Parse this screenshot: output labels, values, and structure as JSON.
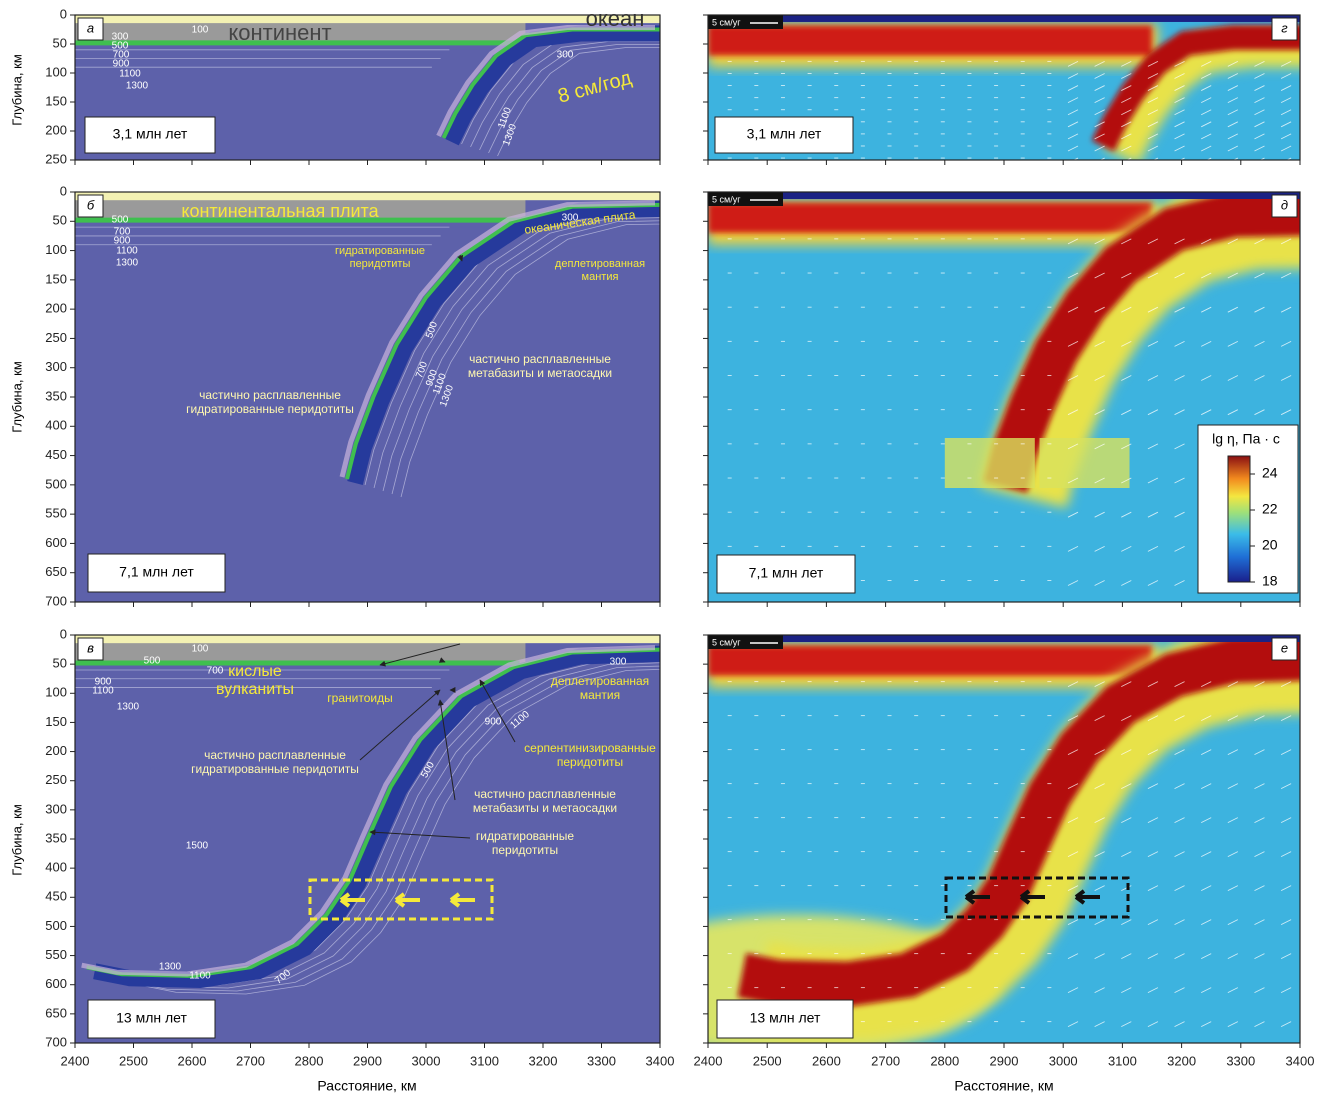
{
  "x_axis": {
    "label": "Расстояние, км",
    "lim": [
      2400,
      3400
    ],
    "ticks": [
      2400,
      2500,
      2600,
      2700,
      2800,
      2900,
      3000,
      3100,
      3200,
      3300,
      3400
    ]
  },
  "y_axis_label": "Глубина, км",
  "panels": [
    {
      "letter": "а",
      "time": "3,1 млн лет",
      "ylim": [
        0,
        250
      ],
      "yticks": [
        0,
        50,
        100,
        150,
        200,
        250
      ],
      "annotations": [
        [
          "континент"
        ],
        [
          "океан"
        ],
        [
          "8 см/год"
        ],
        [
          "100"
        ],
        [
          "300"
        ],
        [
          "500"
        ],
        [
          "700"
        ],
        [
          "900"
        ],
        [
          "1100"
        ],
        [
          "1300"
        ],
        [
          "300"
        ],
        [
          "1100"
        ],
        [
          "1300"
        ]
      ]
    },
    {
      "letter": "б",
      "time": "7,1 млн лет",
      "ylim": [
        0,
        700
      ],
      "yticks": [
        0,
        50,
        100,
        150,
        200,
        250,
        300,
        350,
        400,
        450,
        500,
        550,
        600,
        650,
        700
      ],
      "annotations": [
        [
          "континентальная плита"
        ],
        [
          "океаническая плита"
        ],
        [
          "гидратированные",
          "перидотиты"
        ],
        [
          "деплетированная",
          "мантия"
        ],
        [
          "частично расплавленные",
          "метабазиты и метаосадки"
        ],
        [
          "частично расплавленные",
          "гидратированные перидотиты"
        ],
        [
          "500"
        ],
        [
          "700"
        ],
        [
          "900"
        ],
        [
          "1100"
        ],
        [
          "1300"
        ],
        [
          "500"
        ],
        [
          "700"
        ],
        [
          "900"
        ],
        [
          "1100"
        ],
        [
          "1300"
        ],
        [
          "300"
        ]
      ]
    },
    {
      "letter": "в",
      "time": "13 млн лет",
      "ylim": [
        0,
        700
      ],
      "yticks": [
        0,
        50,
        100,
        150,
        200,
        250,
        300,
        350,
        400,
        450,
        500,
        550,
        600,
        650,
        700
      ],
      "annotations": [
        [
          "кислые",
          "вулканиты"
        ],
        [
          "гранитоиды"
        ],
        [
          "деплетированная",
          "мантия"
        ],
        [
          "серпентинизированные",
          "перидотиты"
        ],
        [
          "частично расплавленные",
          "гидратированные перидотиты"
        ],
        [
          "частично расплавленные",
          "метабазиты и метаосадки"
        ],
        [
          "гидратированные",
          "перидотиты"
        ],
        [
          "100"
        ],
        [
          "500"
        ],
        [
          "700"
        ],
        [
          "900"
        ],
        [
          "1100"
        ],
        [
          "1300"
        ],
        [
          "300"
        ],
        [
          "900"
        ],
        [
          "1100"
        ],
        [
          "500"
        ],
        [
          "1500"
        ],
        [
          "1300"
        ],
        [
          "1100"
        ],
        [
          "700"
        ]
      ]
    }
  ],
  "viscosity_panels": [
    {
      "letter": "г",
      "time": "3,1 млн лет",
      "scale": "5 см/уг"
    },
    {
      "letter": "д",
      "time": "7,1 млн лет",
      "scale": "5 см/уг"
    },
    {
      "letter": "е",
      "time": "13 млн лет",
      "scale": "5 см/уг"
    }
  ],
  "colorbar": {
    "title": "lg η, Па · с",
    "lim": [
      18,
      25
    ],
    "ticks": [
      18,
      20,
      22,
      24
    ]
  }
}
